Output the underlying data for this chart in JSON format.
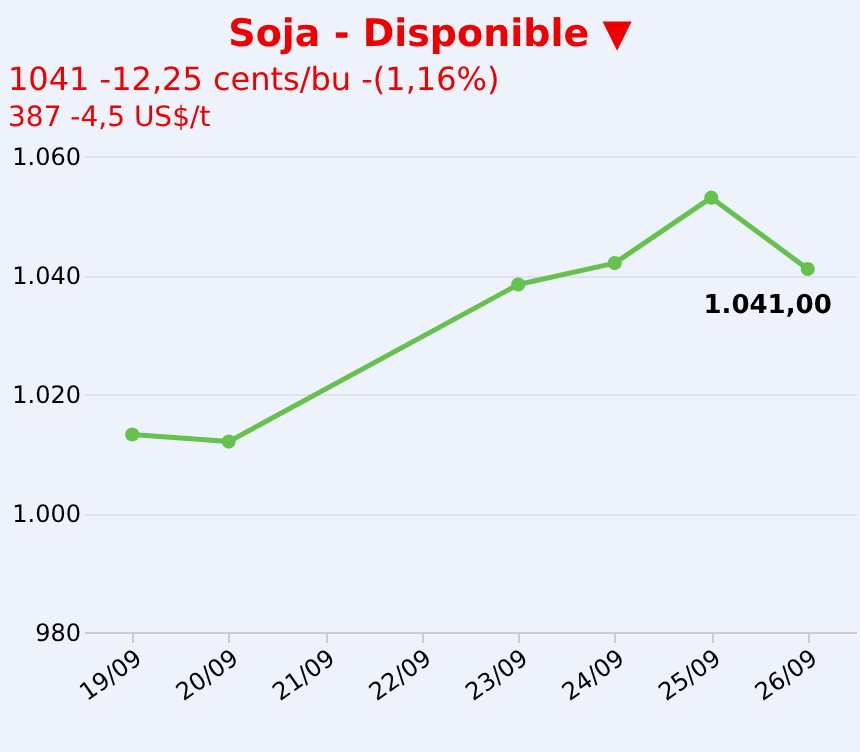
{
  "chart_data": {
    "type": "line",
    "title": "Soja - Disponible ▼",
    "subtitle": "1041 -12,25 cents/bu -(1,16%)",
    "annotations": [
      "387 -4,5 US$/t"
    ],
    "x": [
      "--09-19",
      "--09-20",
      "--09-23",
      "--09-24",
      "--09-25",
      "--09-26"
    ],
    "series": [
      {
        "color": "#66c14f",
        "values": [
          1013.2,
          1012.0,
          1038.4,
          1042.0,
          1053.0,
          1041.0
        ],
        "value_labels": [
          null,
          null,
          null,
          null,
          null,
          "1.041,00"
        ]
      }
    ],
    "xlim": [
      "--09-18T12:00",
      "--09-26T12:00"
    ],
    "xticks": [
      {
        "value": "--09-19",
        "label": "19/09"
      },
      {
        "value": "--09-20",
        "label": "20/09"
      },
      {
        "value": "--09-21",
        "label": "21/09"
      },
      {
        "value": "--09-22",
        "label": "22/09"
      },
      {
        "value": "--09-23",
        "label": "23/09"
      },
      {
        "value": "--09-24",
        "label": "24/09"
      },
      {
        "value": "--09-25",
        "label": "25/09"
      },
      {
        "value": "--09-26",
        "label": "26/09"
      }
    ],
    "ylim": [
      980,
      1060
    ],
    "yticks": [
      {
        "value": 980,
        "label": "980"
      },
      {
        "value": 1000,
        "label": "1.000"
      },
      {
        "value": 1020,
        "label": "1.020"
      },
      {
        "value": 1040,
        "label": "1.040"
      },
      {
        "value": 1060,
        "label": "1.060"
      }
    ],
    "grid": "y",
    "marker": "circle",
    "line_style": "solid"
  }
}
